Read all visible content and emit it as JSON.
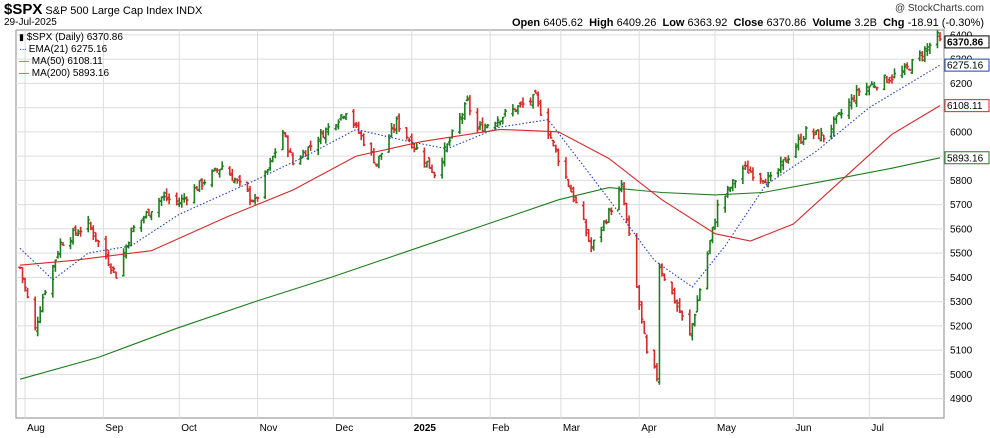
{
  "header": {
    "symbol": "$SPX",
    "name": "S&P 500 Large Cap Index",
    "exchange": "INDX",
    "date": "29-Jul-2025",
    "watermark": "@ StockCharts.com",
    "quote": {
      "open_label": "Open",
      "open": "6405.62",
      "high_label": "High",
      "high": "6409.26",
      "low_label": "Low",
      "low": "6363.92",
      "close_label": "Close",
      "close": "6370.86",
      "volume_label": "Volume",
      "volume": "3.2B",
      "chg_label": "Chg",
      "chg": "-18.91 (-0.30%)"
    }
  },
  "legend": [
    {
      "label": "$SPX (Daily) 6370.86",
      "color": "#000000",
      "style": "bar"
    },
    {
      "label": "EMA(21) 6275.16",
      "color": "#1f3fbf",
      "style": "dotted"
    },
    {
      "label": "MA(50) 6108.11",
      "color": "#d42a2a",
      "style": "solid"
    },
    {
      "label": "MA(200) 5893.16",
      "color": "#1e7d1e",
      "style": "solid"
    }
  ],
  "chart_data": {
    "type": "ohlc",
    "y_axis_position": "right",
    "ylim": [
      4820,
      6420
    ],
    "y_ticks": [
      4900,
      5000,
      5100,
      5200,
      5300,
      5400,
      5500,
      5600,
      5700,
      5800,
      5900,
      6000,
      6100,
      6200,
      6300,
      6400
    ],
    "x_range": [
      "2024-07-30",
      "2025-07-29"
    ],
    "x_ticks": [
      {
        "date": "2024-08-01",
        "label": "Aug",
        "bold": false
      },
      {
        "date": "2024-09-01",
        "label": "Sep",
        "bold": false
      },
      {
        "date": "2024-10-01",
        "label": "Oct",
        "bold": false
      },
      {
        "date": "2024-11-01",
        "label": "Nov",
        "bold": false
      },
      {
        "date": "2024-12-01",
        "label": "Dec",
        "bold": false
      },
      {
        "date": "2025-01-01",
        "label": "2025",
        "bold": true
      },
      {
        "date": "2025-02-01",
        "label": "Feb",
        "bold": false
      },
      {
        "date": "2025-03-01",
        "label": "Mar",
        "bold": false
      },
      {
        "date": "2025-04-01",
        "label": "Apr",
        "bold": false
      },
      {
        "date": "2025-05-01",
        "label": "May",
        "bold": false
      },
      {
        "date": "2025-06-01",
        "label": "Jun",
        "bold": false
      },
      {
        "date": "2025-07-01",
        "label": "Jul",
        "bold": false
      }
    ],
    "grid": true,
    "up_color": "#1e7d1e",
    "down_color": "#d42a2a",
    "price_close_path": [
      {
        "date": "2024-07-30",
        "value": 5440
      },
      {
        "date": "2024-08-05",
        "value": 5185
      },
      {
        "date": "2024-08-08",
        "value": 5320
      },
      {
        "date": "2024-08-15",
        "value": 5540
      },
      {
        "date": "2024-08-26",
        "value": 5620
      },
      {
        "date": "2024-09-06",
        "value": 5410
      },
      {
        "date": "2024-09-12",
        "value": 5590
      },
      {
        "date": "2024-09-24",
        "value": 5730
      },
      {
        "date": "2024-10-01",
        "value": 5710
      },
      {
        "date": "2024-10-18",
        "value": 5860
      },
      {
        "date": "2024-10-31",
        "value": 5710
      },
      {
        "date": "2024-11-11",
        "value": 6000
      },
      {
        "date": "2024-11-15",
        "value": 5870
      },
      {
        "date": "2024-12-06",
        "value": 6090
      },
      {
        "date": "2024-12-18",
        "value": 5870
      },
      {
        "date": "2024-12-26",
        "value": 6040
      },
      {
        "date": "2025-01-10",
        "value": 5830
      },
      {
        "date": "2025-01-23",
        "value": 6120
      },
      {
        "date": "2025-01-27",
        "value": 6010
      },
      {
        "date": "2025-02-19",
        "value": 6140
      },
      {
        "date": "2025-03-10",
        "value": 5620
      },
      {
        "date": "2025-03-13",
        "value": 5520
      },
      {
        "date": "2025-03-25",
        "value": 5770
      },
      {
        "date": "2025-04-04",
        "value": 5080
      },
      {
        "date": "2025-04-08",
        "value": 4990
      },
      {
        "date": "2025-04-09",
        "value": 5450
      },
      {
        "date": "2025-04-21",
        "value": 5160
      },
      {
        "date": "2025-05-02",
        "value": 5690
      },
      {
        "date": "2025-05-12",
        "value": 5850
      },
      {
        "date": "2025-05-23",
        "value": 5800
      },
      {
        "date": "2025-06-06",
        "value": 6000
      },
      {
        "date": "2025-06-13",
        "value": 5980
      },
      {
        "date": "2025-06-27",
        "value": 6170
      },
      {
        "date": "2025-07-15",
        "value": 6250
      },
      {
        "date": "2025-07-28",
        "value": 6390
      },
      {
        "date": "2025-07-29",
        "value": 6370.86
      }
    ],
    "series": [
      {
        "name": "EMA(21)",
        "color": "#1f3fbf",
        "dash": true,
        "last_label": "6275.16",
        "points": [
          {
            "date": "2024-07-30",
            "value": 5520
          },
          {
            "date": "2024-08-12",
            "value": 5390
          },
          {
            "date": "2024-08-26",
            "value": 5500
          },
          {
            "date": "2024-09-12",
            "value": 5530
          },
          {
            "date": "2024-10-01",
            "value": 5660
          },
          {
            "date": "2024-10-31",
            "value": 5800
          },
          {
            "date": "2024-11-20",
            "value": 5900
          },
          {
            "date": "2024-12-10",
            "value": 6010
          },
          {
            "date": "2024-12-31",
            "value": 5960
          },
          {
            "date": "2025-01-15",
            "value": 5930
          },
          {
            "date": "2025-02-05",
            "value": 6020
          },
          {
            "date": "2025-02-24",
            "value": 6050
          },
          {
            "date": "2025-03-18",
            "value": 5750
          },
          {
            "date": "2025-04-07",
            "value": 5470
          },
          {
            "date": "2025-04-22",
            "value": 5360
          },
          {
            "date": "2025-05-05",
            "value": 5530
          },
          {
            "date": "2025-05-21",
            "value": 5780
          },
          {
            "date": "2025-06-10",
            "value": 5920
          },
          {
            "date": "2025-07-01",
            "value": 6100
          },
          {
            "date": "2025-07-29",
            "value": 6275.16
          }
        ]
      },
      {
        "name": "MA(50)",
        "color": "#d42a2a",
        "dash": false,
        "last_label": "6108.11",
        "points": [
          {
            "date": "2024-07-30",
            "value": 5450
          },
          {
            "date": "2024-08-20",
            "value": 5470
          },
          {
            "date": "2024-09-20",
            "value": 5510
          },
          {
            "date": "2024-10-20",
            "value": 5650
          },
          {
            "date": "2024-11-15",
            "value": 5760
          },
          {
            "date": "2024-12-10",
            "value": 5900
          },
          {
            "date": "2025-01-05",
            "value": 5960
          },
          {
            "date": "2025-02-05",
            "value": 6010
          },
          {
            "date": "2025-02-28",
            "value": 6000
          },
          {
            "date": "2025-03-20",
            "value": 5890
          },
          {
            "date": "2025-04-10",
            "value": 5720
          },
          {
            "date": "2025-05-01",
            "value": 5580
          },
          {
            "date": "2025-05-15",
            "value": 5550
          },
          {
            "date": "2025-06-01",
            "value": 5620
          },
          {
            "date": "2025-06-20",
            "value": 5800
          },
          {
            "date": "2025-07-10",
            "value": 5990
          },
          {
            "date": "2025-07-29",
            "value": 6108.11
          }
        ]
      },
      {
        "name": "MA(200)",
        "color": "#1e7d1e",
        "dash": false,
        "last_label": "5893.16",
        "points": [
          {
            "date": "2024-07-30",
            "value": 4980
          },
          {
            "date": "2024-08-30",
            "value": 5070
          },
          {
            "date": "2024-09-30",
            "value": 5190
          },
          {
            "date": "2024-10-31",
            "value": 5300
          },
          {
            "date": "2024-11-30",
            "value": 5400
          },
          {
            "date": "2024-12-31",
            "value": 5510
          },
          {
            "date": "2025-01-31",
            "value": 5620
          },
          {
            "date": "2025-02-28",
            "value": 5720
          },
          {
            "date": "2025-03-20",
            "value": 5770
          },
          {
            "date": "2025-04-10",
            "value": 5750
          },
          {
            "date": "2025-05-01",
            "value": 5740
          },
          {
            "date": "2025-05-20",
            "value": 5750
          },
          {
            "date": "2025-06-15",
            "value": 5800
          },
          {
            "date": "2025-07-10",
            "value": 5850
          },
          {
            "date": "2025-07-29",
            "value": 5893.16
          }
        ]
      }
    ],
    "price_last_label": "6370.86"
  }
}
